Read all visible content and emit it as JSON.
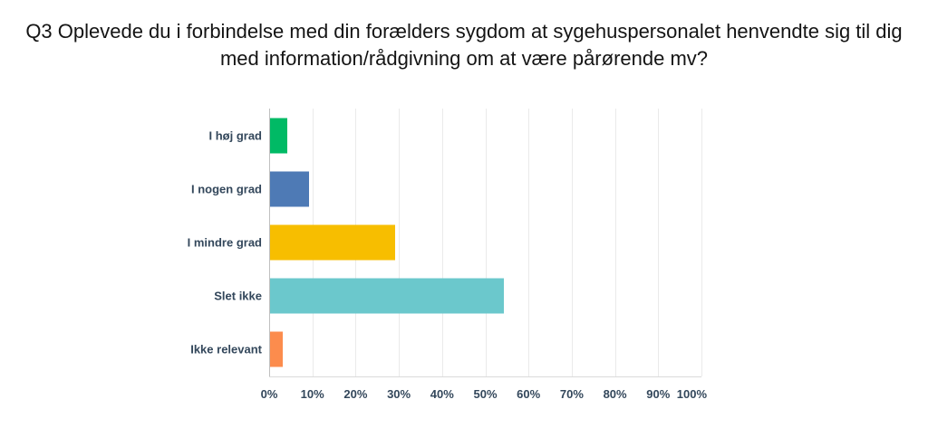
{
  "chart_data": {
    "type": "bar",
    "orientation": "horizontal",
    "title": "Q3 Oplevede du i forbindelse med din forælders sygdom at sygehuspersonalet henvendte sig til dig med information/rådgivning om at være pårørende mv?",
    "categories": [
      "I høj grad",
      "I nogen grad",
      "I mindre grad",
      "Slet ikke",
      "Ikke relevant"
    ],
    "values": [
      4,
      9,
      29,
      54,
      3
    ],
    "unit": "%",
    "bar_colors": [
      "#00BA65",
      "#4E7AB5",
      "#F7BE00",
      "#6BC8CC",
      "#FC8C4D"
    ],
    "xlabel": "",
    "ylabel": "",
    "xlim": [
      0,
      100
    ],
    "x_ticks": [
      "0%",
      "10%",
      "20%",
      "30%",
      "40%",
      "50%",
      "60%",
      "70%",
      "80%",
      "90%",
      "100%"
    ],
    "grid": true,
    "legend": false
  },
  "colors": {
    "background": "#FFFFFF",
    "title_text": "#141414",
    "label_text": "#33475B",
    "gridline": "#EAEAEA",
    "axis_line": "#BFBFBF",
    "axis_bottom_line": "#DBDBDB"
  }
}
